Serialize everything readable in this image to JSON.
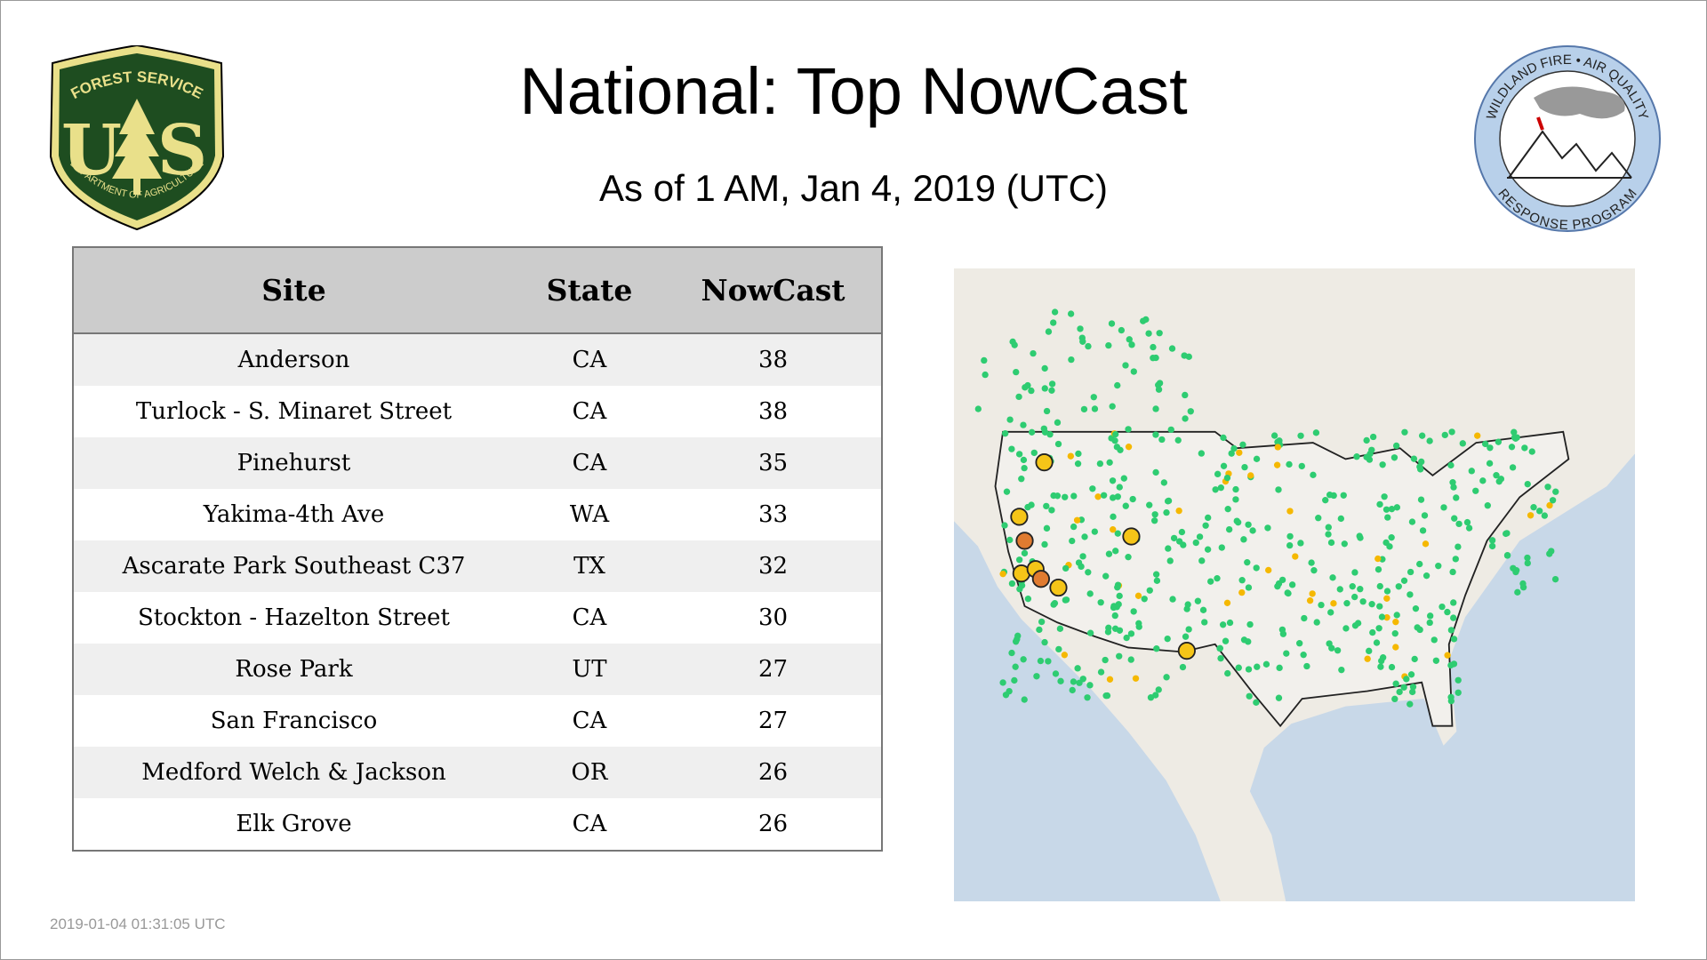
{
  "header": {
    "title": "National: Top NowCast",
    "subtitle": "As of  1 AM, Jan  4, 2019 (UTC)"
  },
  "logos": {
    "forest_service": {
      "top": "FOREST SERVICE",
      "bottom": "DEPARTMENT OF AGRICULTURE",
      "left": "U",
      "right": "S"
    },
    "wildland": {
      "top": "WILDLAND FIRE • AIR QUALITY",
      "bottom": "RESPONSE PROGRAM"
    }
  },
  "table": {
    "columns": [
      "Site",
      "State",
      "NowCast"
    ],
    "rows": [
      [
        "Anderson",
        "CA",
        38
      ],
      [
        "Turlock - S. Minaret Street",
        "CA",
        38
      ],
      [
        "Pinehurst",
        "CA",
        35
      ],
      [
        "Yakima-4th Ave",
        "WA",
        33
      ],
      [
        "Ascarate Park Southeast C37",
        "TX",
        32
      ],
      [
        "Stockton - Hazelton Street",
        "CA",
        30
      ],
      [
        "Rose Park",
        "UT",
        27
      ],
      [
        "San Francisco",
        "CA",
        27
      ],
      [
        "Medford Welch & Jackson",
        "OR",
        26
      ],
      [
        "Elk Grove",
        "CA",
        26
      ]
    ]
  },
  "footer": {
    "timestamp": "2019-01-04 01:31:05 UTC"
  }
}
